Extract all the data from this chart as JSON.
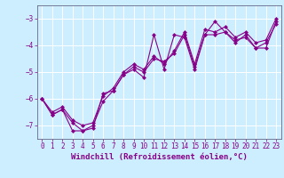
{
  "xlabel": "Windchill (Refroidissement éolien,°C)",
  "bg_color": "#cceeff",
  "line_color": "#880088",
  "grid_color": "#ffffff",
  "spine_color": "#666688",
  "xlim": [
    -0.5,
    23.5
  ],
  "ylim": [
    -7.5,
    -2.5
  ],
  "yticks": [
    -7,
    -6,
    -5,
    -4,
    -3
  ],
  "xticks": [
    0,
    1,
    2,
    3,
    4,
    5,
    6,
    7,
    8,
    9,
    10,
    11,
    12,
    13,
    14,
    15,
    16,
    17,
    18,
    19,
    20,
    21,
    22,
    23
  ],
  "line1_x": [
    0,
    1,
    2,
    3,
    4,
    5,
    6,
    7,
    8,
    9,
    10,
    11,
    12,
    13,
    14,
    15,
    16,
    17,
    18,
    19,
    20,
    21,
    22,
    23
  ],
  "line1_y": [
    -6.0,
    -6.6,
    -6.4,
    -6.9,
    -7.2,
    -7.1,
    -5.8,
    -5.7,
    -5.1,
    -4.9,
    -5.2,
    -3.6,
    -4.9,
    -3.6,
    -3.7,
    -4.9,
    -3.6,
    -3.1,
    -3.5,
    -3.9,
    -3.6,
    -4.1,
    -4.1,
    -3.1
  ],
  "line2_x": [
    0,
    1,
    2,
    3,
    4,
    5,
    6,
    7,
    8,
    9,
    10,
    11,
    12,
    13,
    14,
    15,
    16,
    17,
    18,
    19,
    20,
    21,
    22,
    23
  ],
  "line2_y": [
    -6.0,
    -6.6,
    -6.4,
    -7.2,
    -7.2,
    -7.0,
    -6.1,
    -5.7,
    -5.1,
    -4.8,
    -5.0,
    -4.5,
    -4.6,
    -4.3,
    -3.6,
    -4.8,
    -3.6,
    -3.6,
    -3.5,
    -3.8,
    -3.7,
    -4.1,
    -3.9,
    -3.2
  ],
  "line3_x": [
    0,
    1,
    2,
    3,
    4,
    5,
    6,
    7,
    8,
    9,
    10,
    11,
    12,
    13,
    14,
    15,
    16,
    17,
    18,
    19,
    20,
    21,
    22,
    23
  ],
  "line3_y": [
    -6.0,
    -6.5,
    -6.3,
    -6.8,
    -7.0,
    -6.9,
    -5.9,
    -5.6,
    -5.0,
    -4.7,
    -4.9,
    -4.4,
    -4.7,
    -4.2,
    -3.5,
    -4.7,
    -3.4,
    -3.5,
    -3.3,
    -3.7,
    -3.5,
    -3.9,
    -3.8,
    -3.0
  ],
  "marker": "D",
  "markersize": 2.5,
  "linewidth": 0.8,
  "tick_fontsize": 5.5,
  "xlabel_fontsize": 6.5
}
